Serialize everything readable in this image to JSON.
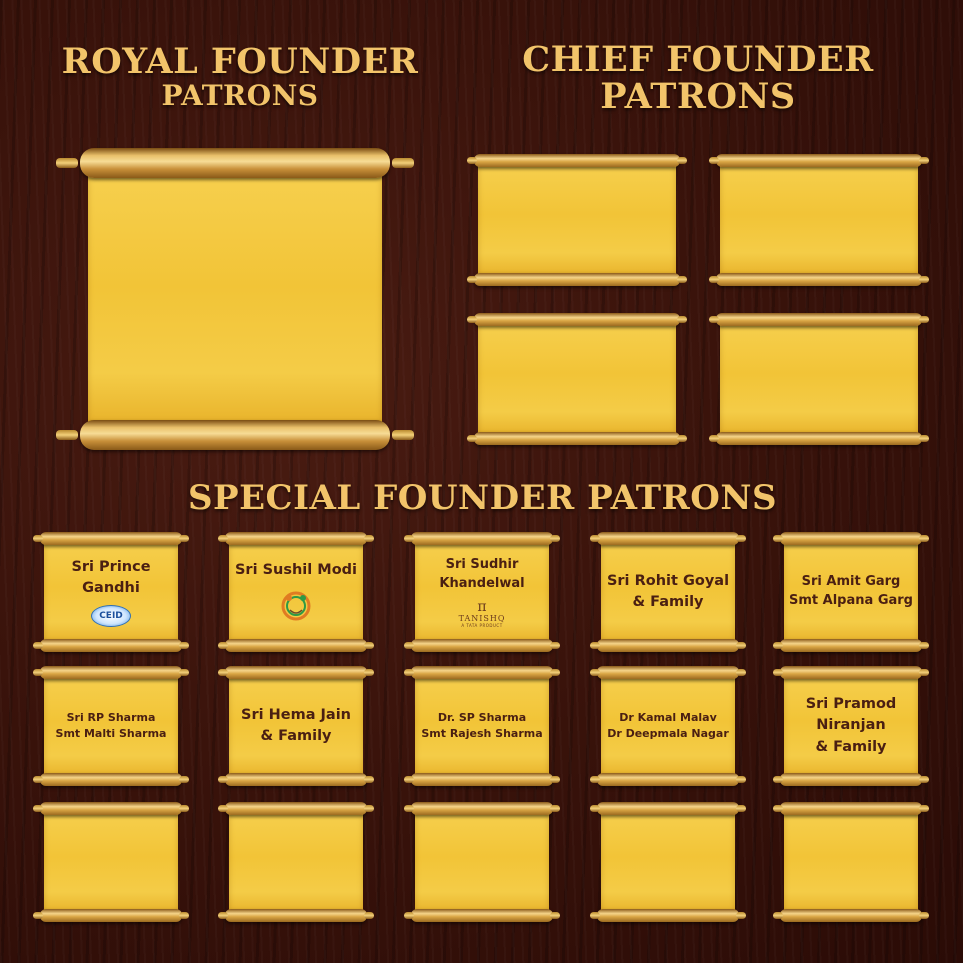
{
  "headings": {
    "royal_line1": "ROYAL FOUNDER",
    "royal_line2": "PATRONS",
    "chief_line1": "CHIEF FOUNDER",
    "chief_line2": "PATRONS",
    "special": "SPECIAL FOUNDER PATRONS"
  },
  "special_patrons": [
    {
      "lines": [
        "Sri Prince",
        "Gandhi"
      ],
      "logo": "ceid-logo",
      "logo_text": "CEID"
    },
    {
      "lines": [
        "Sri Sushil Modi"
      ],
      "logo": "circle-emblem-logo"
    },
    {
      "lines": [
        "Sri Sudhir",
        "Khandelwal"
      ],
      "logo": "tanishq-logo",
      "logo_mark": "π",
      "logo_text": "TANISHQ",
      "logo_sub": "A TATA PRODUCT"
    },
    {
      "lines": [
        "Sri Rohit Goyal",
        "& Family"
      ]
    },
    {
      "lines": [
        "Sri Amit Garg",
        "Smt Alpana Garg"
      ]
    },
    {
      "lines": [
        "Sri RP Sharma",
        "Smt Malti Sharma"
      ]
    },
    {
      "lines": [
        "Sri Hema Jain",
        "& Family"
      ]
    },
    {
      "lines": [
        "Dr. SP Sharma",
        "Smt Rajesh Sharma"
      ]
    },
    {
      "lines": [
        "Dr Kamal Malav",
        "Dr Deepmala Nagar"
      ]
    },
    {
      "lines": [
        "Sri Pramod",
        "Niranjan",
        "& Family"
      ]
    }
  ],
  "colors": {
    "heading": "#f2c46a",
    "scroll_paper": "#f2c437",
    "name_text": "#4a1f12",
    "background": "#3a130b"
  }
}
